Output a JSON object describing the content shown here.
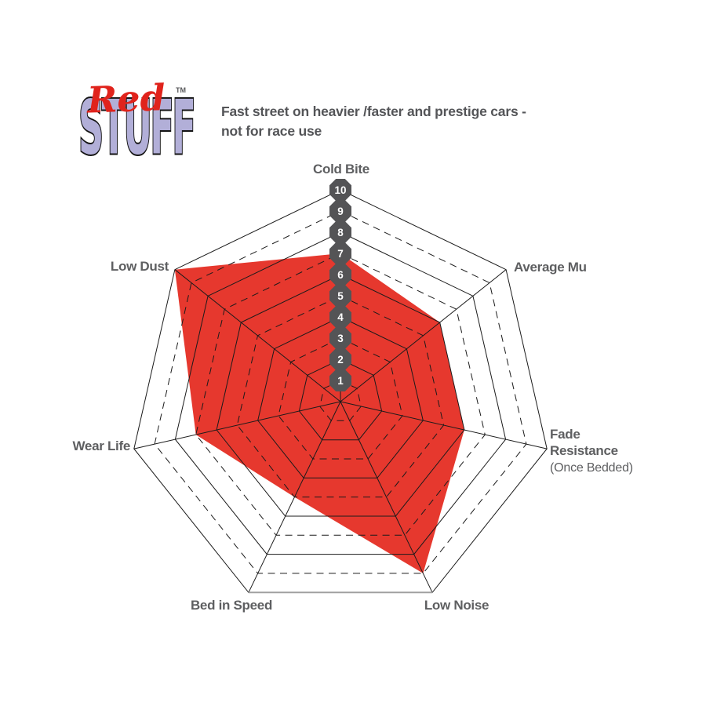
{
  "logo": {
    "brand_line1": "Red",
    "brand_line2": "STUFF",
    "trademark": "TM",
    "red_color": "#e0231c",
    "stuff_fill_color": "#b2afd8",
    "stuff_outline_color": "#141414"
  },
  "header": {
    "description": "Fast street on heavier /faster and prestige cars -\nnot for race use"
  },
  "labels": {
    "cold_bite": "Cold Bite",
    "average_mu": "Average Mu",
    "fade_line1": "Fade",
    "fade_line2": "Resistance",
    "fade_sub": "(Once Bedded)",
    "low_noise": "Low Noise",
    "bed_in_speed": "Bed in Speed",
    "wear_life": "Wear Life",
    "low_dust": "Low Dust"
  },
  "chart_data": {
    "type": "radar",
    "title": "",
    "axes": [
      "Cold Bite",
      "Average Mu",
      "Fade Resistance (Once Bedded)",
      "Low Noise",
      "Bed in Speed",
      "Wear Life",
      "Low Dust"
    ],
    "series": [
      {
        "name": "RedStuff",
        "values": [
          7,
          6,
          6,
          9,
          5,
          7,
          10
        ],
        "fill_color": "#e6382e"
      }
    ],
    "scale": {
      "min": 0,
      "max": 10,
      "rings": 10,
      "tick_labels": [
        "1",
        "2",
        "3",
        "4",
        "5",
        "6",
        "7",
        "8",
        "9",
        "10"
      ]
    },
    "grid": {
      "ring_style": "even rings solid, odd rings dashed",
      "line_color": "#1b1b1b",
      "badge_color": "#545456",
      "tick_text_color": "#ffffff",
      "outer_bottom_edge_color": "#a0a0a0"
    },
    "legend": "none"
  }
}
